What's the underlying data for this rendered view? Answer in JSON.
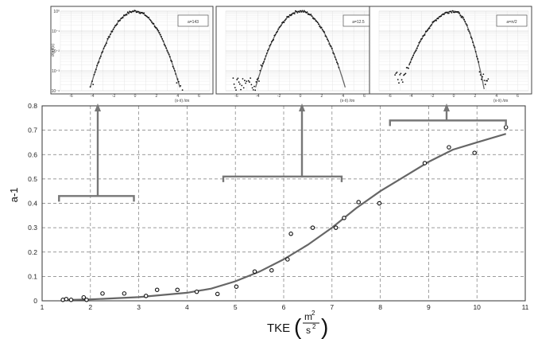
{
  "chart_data": [
    {
      "type": "scatter",
      "xlabel": "TKE",
      "xlabel_unit_num": "m",
      "xlabel_unit_den": "s",
      "xlabel_unit_exp": "2",
      "ylabel": "a-1",
      "xlim": [
        1,
        11
      ],
      "ylim": [
        0,
        0.8
      ],
      "x_ticks": [
        "1",
        "2",
        "3",
        "4",
        "5",
        "6",
        "7",
        "8",
        "9",
        "10",
        "11"
      ],
      "y_ticks": [
        "0",
        "0.1",
        "0.2",
        "0.3",
        "0.4",
        "0.5",
        "0.6",
        "0.7",
        "0.8"
      ],
      "grid": true,
      "series": [
        {
          "kind": "points",
          "marker": "circle",
          "x": [
            1.43,
            1.5,
            1.6,
            1.86,
            1.92,
            2.25,
            2.7,
            3.15,
            3.38,
            3.8,
            4.2,
            4.63,
            5.02,
            5.4,
            5.75,
            6.08,
            6.15,
            6.6,
            7.08,
            7.25,
            7.55,
            7.98,
            8.92,
            9.42,
            9.95,
            10.6
          ],
          "y": [
            0.004,
            0.007,
            0.004,
            0.014,
            0.004,
            0.03,
            0.03,
            0.02,
            0.045,
            0.045,
            0.037,
            0.028,
            0.058,
            0.12,
            0.125,
            0.17,
            0.275,
            0.3,
            0.3,
            0.34,
            0.405,
            0.4,
            0.565,
            0.63,
            0.607,
            0.712
          ]
        },
        {
          "kind": "fit-line",
          "color": "#666666",
          "x": [
            1.4,
            2,
            3,
            4,
            4.5,
            5,
            5.5,
            6,
            6.5,
            7,
            7.5,
            8,
            8.5,
            9,
            9.5,
            10,
            10.6
          ],
          "y": [
            0.003,
            0.006,
            0.015,
            0.033,
            0.05,
            0.08,
            0.12,
            0.17,
            0.23,
            0.3,
            0.38,
            0.45,
            0.51,
            0.57,
            0.62,
            0.65,
            0.685
          ]
        }
      ],
      "annotations": [
        {
          "kind": "bracket-arrow",
          "x_range": [
            1.35,
            2.9
          ],
          "y": 0.43,
          "arrow_x": 2.2,
          "to_inset": 0
        },
        {
          "kind": "bracket-arrow",
          "x_range": [
            4.75,
            7.2
          ],
          "y": 0.51,
          "arrow_x": 5.9,
          "to_inset": 1
        },
        {
          "kind": "bracket-arrow",
          "x_range": [
            8.2,
            10.6
          ],
          "y": 0.74,
          "arrow_x": 9.4,
          "to_inset": 2
        }
      ]
    },
    {
      "type": "scatter",
      "label": "a=143",
      "xlabel": "(x-x̄) /σx",
      "ylabel": "σ(x)f(x)",
      "log_y": true,
      "xlim": [
        -7,
        7
      ],
      "ylim_exp": [
        -4,
        0
      ],
      "x_ticks": [
        "-6",
        "-4",
        "-2",
        "0",
        "2",
        "4",
        "6"
      ],
      "y_ticks": [
        "10⁰",
        "10⁻¹",
        "10⁻²",
        "10⁻³",
        "10⁻⁴"
      ],
      "curve": "gaussian",
      "points_x_range": [
        -4.2,
        4.5
      ],
      "points_noise_below": 0.0005
    },
    {
      "type": "scatter",
      "label": "a=12.5",
      "xlabel": "(x-x̄) /σx",
      "log_y": true,
      "xlim": [
        -7,
        7
      ],
      "ylim_exp": [
        -4,
        0
      ],
      "x_ticks": [
        "-6",
        "-4",
        "-2",
        "0",
        "2",
        "4",
        "6"
      ],
      "curve": "gaussian",
      "points_x_range": [
        -6.3,
        3.6
      ],
      "points_noise_below": 0.002
    },
    {
      "type": "scatter",
      "label": "a=π/2",
      "xlabel": "(x-x̄) /σx",
      "log_y": true,
      "xlim": [
        -7,
        7
      ],
      "ylim_exp": [
        -4,
        0
      ],
      "x_ticks": [
        "-6",
        "-4",
        "-2",
        "0",
        "2",
        "4",
        "6"
      ],
      "curve": "skewed",
      "points_x_range": [
        -5.5,
        3.3
      ],
      "points_noise_below": 0.003
    }
  ]
}
